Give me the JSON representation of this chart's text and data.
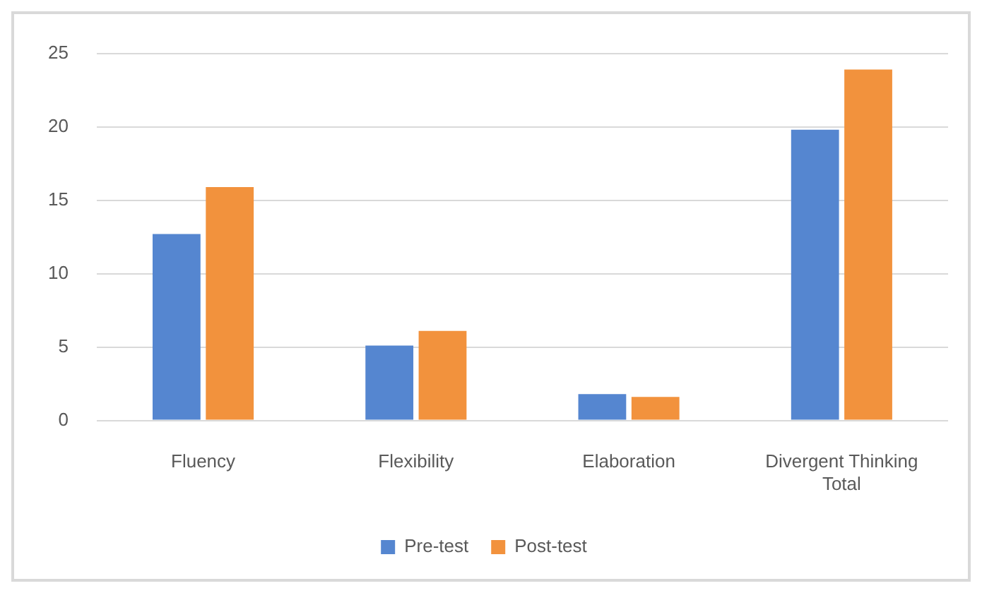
{
  "chart_data": {
    "type": "bar",
    "categories": [
      "Fluency",
      "Flexibility",
      "Elaboration",
      "Divergent Thinking Total"
    ],
    "series": [
      {
        "name": "Pre-test",
        "color": "#5586d0",
        "values": [
          12.7,
          5.1,
          1.8,
          19.8
        ]
      },
      {
        "name": "Post-test",
        "color": "#f2923d",
        "values": [
          15.9,
          6.1,
          1.6,
          23.9
        ]
      }
    ],
    "ylim": [
      0,
      25
    ],
    "yticks": [
      0,
      5,
      10,
      15,
      20,
      25
    ],
    "grid": "y",
    "legend": "bottom"
  }
}
